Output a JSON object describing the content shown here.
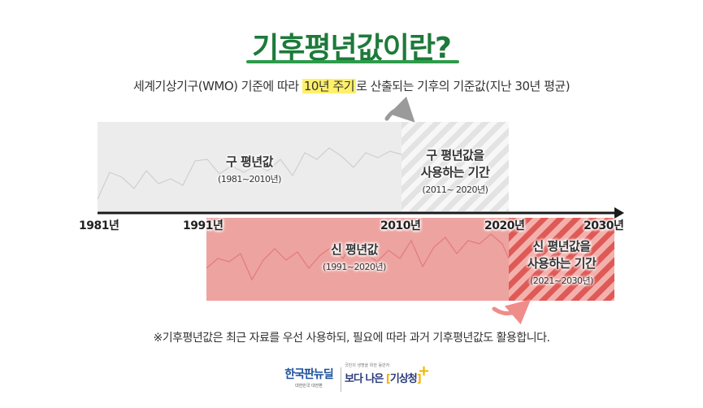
{
  "title": "기후평년값이란?",
  "subtitle": {
    "before": "세계기상기구(WMO) 기준에 따라 ",
    "highlight": "10년 주기",
    "after": "로 산출되는 기후의 기준값(지난 30년 평균)"
  },
  "old_normal": {
    "label": "구 평년값",
    "range": "(1981~2010년)",
    "usage_line1": "구 평년값을",
    "usage_line2": "사용하는 기간",
    "usage_range": "(2011~ 2020년)"
  },
  "new_normal": {
    "label": "신 평년값",
    "range": "(1991~2020년)",
    "usage_line1": "신 평년값을",
    "usage_line2": "사용하는 기간",
    "usage_range": "(2021~2030년)"
  },
  "timeline": {
    "y1981": "1981년",
    "y1991": "1991년",
    "y2010": "2010년",
    "y2020": "2020년",
    "y2030": "2030년"
  },
  "note": "※기후평년값은 최근 자료를 우선 사용하되, 필요에 따라 과거 기후평년값도 활용합니다.",
  "logos": {
    "korea_new_deal": "한국판뉴딜",
    "korea_new_deal_sub": "대한민국 대전환",
    "kma_slogan_small": "국민의 생명을 위한 동반자",
    "kma_slogan": "보다 나은",
    "kma_name": "기상청"
  },
  "colors": {
    "title_green": "#1d7a3a",
    "highlight_yellow": "#fff06a",
    "old_box_gray": "#ececec",
    "new_box_pink": "#eda3a0",
    "new_use_red": "#df5a56"
  }
}
